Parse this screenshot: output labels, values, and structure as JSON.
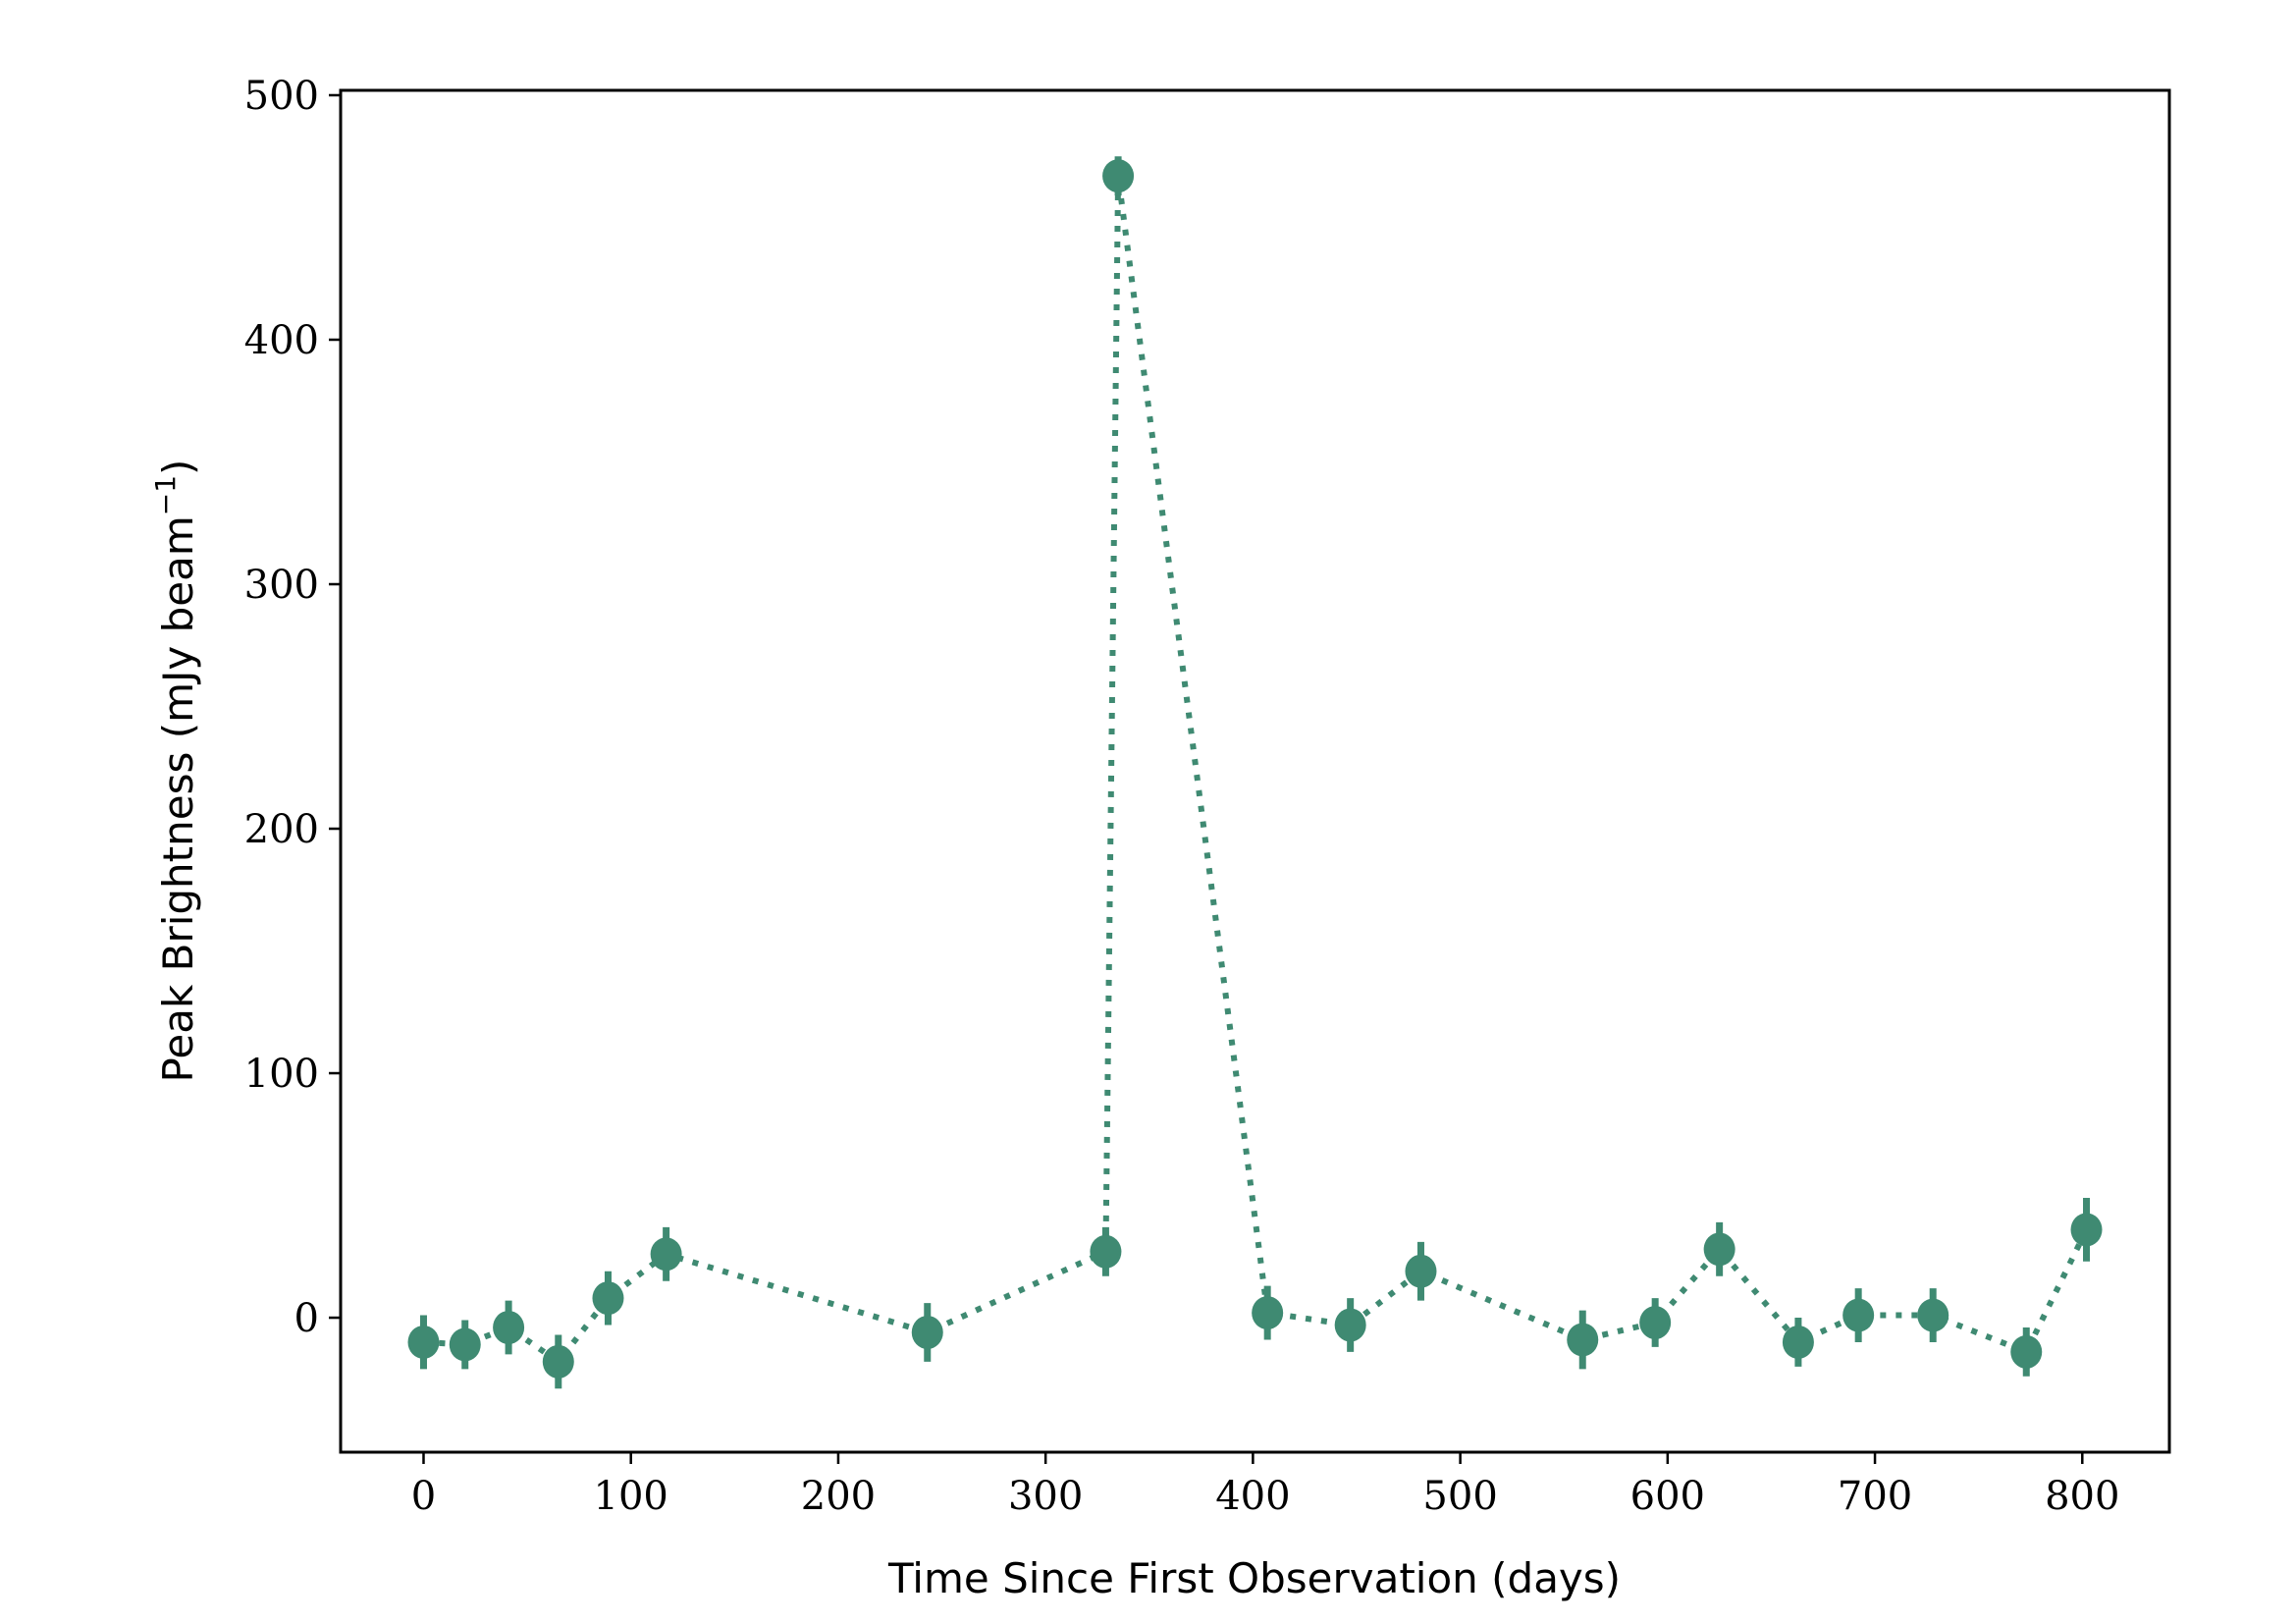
{
  "chart_data": {
    "type": "scatter",
    "title": "",
    "xlabel": "Time Since First Observation (days)",
    "ylabel": "Peak Brightness (mJy beam",
    "ylabel_superscript": "−1",
    "ylabel_close": ")",
    "xlim": [
      -40,
      842
    ],
    "ylim": [
      -55,
      502
    ],
    "xticks": [
      0,
      100,
      200,
      300,
      400,
      500,
      600,
      700,
      800
    ],
    "yticks": [
      0,
      100,
      200,
      300,
      400,
      500
    ],
    "grid": false,
    "line_style": "dotted",
    "marker": "circle",
    "color": "#3f8a72",
    "x": [
      0,
      20,
      41,
      65,
      89,
      117,
      243,
      329,
      335,
      407,
      447,
      481,
      559,
      594,
      625,
      663,
      692,
      728,
      773,
      802
    ],
    "y": [
      -10,
      -11,
      -4,
      -18,
      8,
      26,
      -6,
      27,
      467,
      2,
      -3,
      19,
      -9,
      -2,
      28,
      -10,
      1,
      1,
      -14,
      36
    ],
    "yerr": [
      11,
      10,
      11,
      11,
      11,
      11,
      12,
      10,
      8,
      11,
      11,
      12,
      12,
      10,
      11,
      10,
      11,
      11,
      10,
      13
    ]
  }
}
